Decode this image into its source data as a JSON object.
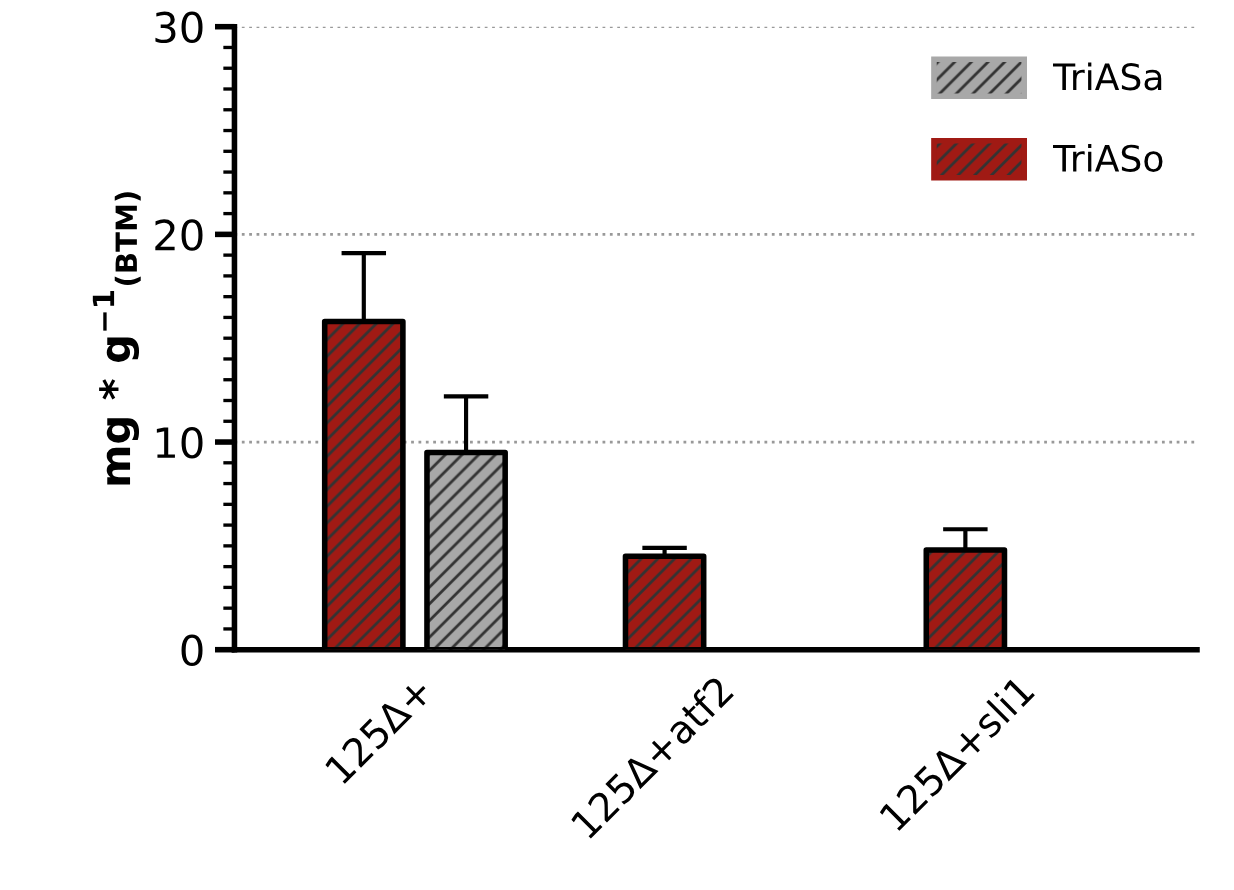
{
  "chart_data": {
    "type": "bar",
    "ylabel": "mg * g$^{−1}$$_{(BTM)}$",
    "categories": [
      "125Δ+",
      "125Δ+atf2",
      "125Δ+sli1"
    ],
    "series": [
      {
        "name": "TriASo",
        "color": "#a01a14",
        "values": [
          15.8,
          4.5,
          4.8
        ],
        "errors": [
          [
            15.8,
            19.1
          ],
          [
            4.5,
            4.9
          ],
          [
            4.8,
            5.8
          ]
        ]
      },
      {
        "name": "TriASa",
        "color": "#a8a8a8",
        "values": [
          9.5,
          null,
          null
        ],
        "errors": [
          [
            9.5,
            12.2
          ],
          null,
          null
        ]
      }
    ],
    "ylim": [
      0,
      30
    ],
    "yticks": [
      0,
      10,
      20,
      30
    ],
    "grid": "y",
    "legend": "top right"
  }
}
